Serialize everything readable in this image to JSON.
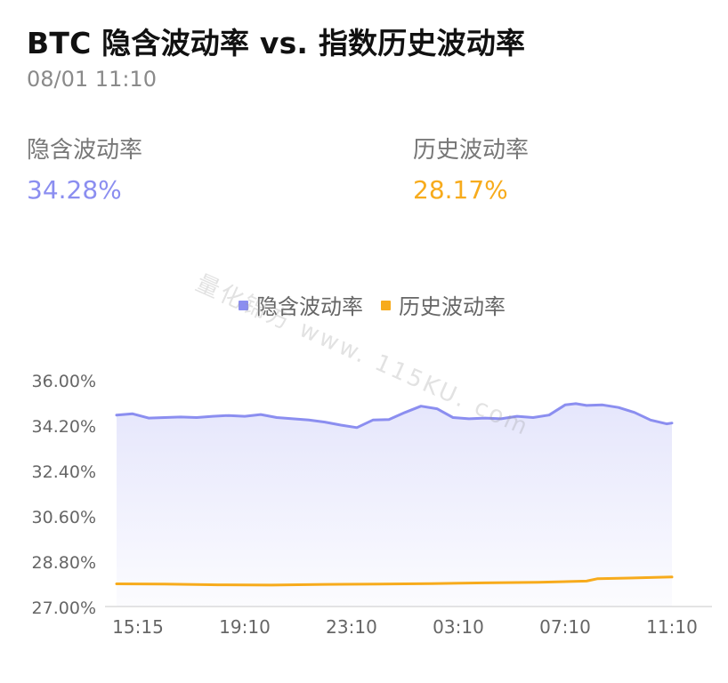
{
  "header": {
    "title": "BTC 隐含波动率 vs. 指数历史波动率",
    "timestamp": "08/01 11:10"
  },
  "stats": {
    "implied": {
      "label": "隐含波动率",
      "value": "34.28%"
    },
    "historical": {
      "label": "历史波动率",
      "value": "28.17%"
    }
  },
  "watermark": "量化锦方 www. 115KU. com",
  "colors": {
    "implied": "#8b8ef0",
    "historical": "#f7ab1c",
    "axis_text": "#666666",
    "grid": "#e0e0e0"
  },
  "chart_data": {
    "type": "line",
    "title": "",
    "xlabel": "",
    "ylabel": "",
    "legend_position": "top-center",
    "ylim": [
      27.0,
      36.0
    ],
    "y_ticks": [
      "36.00%",
      "34.20%",
      "32.40%",
      "30.60%",
      "28.80%",
      "27.00%"
    ],
    "y_tick_values": [
      36.0,
      34.2,
      32.4,
      30.6,
      28.8,
      27.0
    ],
    "x_ticks": [
      "15:15",
      "19:10",
      "23:10",
      "03:10",
      "07:10",
      "11:10"
    ],
    "x_tick_values": [
      0,
      20,
      40,
      60,
      80,
      100
    ],
    "series": [
      {
        "name": "隐含波动率",
        "area": true,
        "x": [
          -4,
          -1,
          2,
          5,
          8,
          11,
          14,
          17,
          20,
          23,
          26,
          29,
          32,
          35,
          38,
          41,
          44,
          47,
          50,
          53,
          56,
          59,
          62,
          65,
          68,
          71,
          74,
          77,
          80,
          82,
          84,
          87,
          90,
          93,
          96,
          99,
          100
        ],
        "values": [
          34.6,
          34.65,
          34.48,
          34.5,
          34.52,
          34.5,
          34.55,
          34.58,
          34.55,
          34.62,
          34.5,
          34.45,
          34.4,
          34.32,
          34.2,
          34.1,
          34.4,
          34.42,
          34.7,
          34.95,
          34.85,
          34.5,
          34.45,
          34.48,
          34.45,
          34.55,
          34.5,
          34.6,
          35.0,
          35.05,
          34.98,
          35.0,
          34.9,
          34.7,
          34.4,
          34.25,
          34.28
        ]
      },
      {
        "name": "历史波动率",
        "area": false,
        "x": [
          -4,
          5,
          15,
          25,
          35,
          45,
          55,
          65,
          75,
          84,
          86,
          92,
          100
        ],
        "values": [
          27.9,
          27.89,
          27.86,
          27.85,
          27.88,
          27.89,
          27.91,
          27.94,
          27.96,
          28.01,
          28.1,
          28.13,
          28.17
        ]
      }
    ]
  }
}
